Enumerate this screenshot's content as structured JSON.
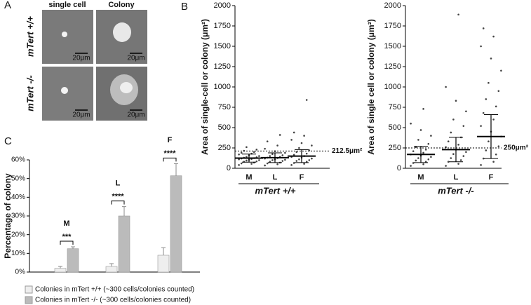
{
  "panel_labels": [
    "A",
    "B",
    "C"
  ],
  "panel_a": {
    "columns": [
      "single cell",
      "Colony"
    ],
    "rows": [
      "mTert +/+",
      "mTert -/-"
    ],
    "scale_bar": "20μm"
  },
  "chart_data": [
    {
      "type": "swarm",
      "categories": [
        "M",
        "L",
        "F"
      ],
      "xlabel": "mTert +/+",
      "ylabel": "Area of single-cell or colony (μm²)",
      "ylim": [
        0,
        2000
      ],
      "yticks": [
        0,
        250,
        500,
        750,
        1000,
        1250,
        1500,
        1750,
        2000
      ],
      "values": [
        [
          40,
          55,
          60,
          70,
          80,
          85,
          95,
          100,
          105,
          110,
          115,
          120,
          125,
          130,
          135,
          140,
          150,
          160,
          170,
          180,
          190,
          200,
          215,
          230,
          260
        ],
        [
          35,
          50,
          60,
          70,
          80,
          90,
          100,
          105,
          110,
          120,
          125,
          130,
          140,
          150,
          160,
          175,
          190,
          210,
          240,
          280,
          330,
          410
        ],
        [
          40,
          55,
          65,
          80,
          90,
          100,
          110,
          120,
          130,
          140,
          150,
          165,
          180,
          200,
          220,
          250,
          280,
          310,
          350,
          400,
          440,
          840
        ]
      ],
      "means": [
        125,
        130,
        150
      ],
      "sd": [
        50,
        60,
        80
      ],
      "refline": 212.5,
      "refline_label": "212.5μm²",
      "color": "#444444"
    },
    {
      "type": "swarm",
      "categories": [
        "M",
        "L",
        "F"
      ],
      "xlabel": "mTert -/-",
      "ylabel": "Area of single cell or colony (μm²)",
      "ylim": [
        0,
        2000
      ],
      "yticks": [
        0,
        250,
        500,
        750,
        1000,
        1250,
        1500,
        1750,
        2000
      ],
      "values": [
        [
          30,
          50,
          65,
          80,
          95,
          110,
          125,
          140,
          155,
          170,
          190,
          210,
          230,
          260,
          300,
          350,
          400,
          470,
          550,
          730
        ],
        [
          30,
          55,
          80,
          100,
          125,
          150,
          175,
          200,
          230,
          260,
          290,
          330,
          380,
          440,
          520,
          600,
          700,
          830,
          1000,
          1890
        ],
        [
          40,
          80,
          120,
          170,
          220,
          270,
          330,
          390,
          450,
          520,
          600,
          680,
          760,
          850,
          950,
          1050,
          1200,
          1350,
          1500,
          1620,
          1720
        ]
      ],
      "means": [
        170,
        230,
        390
      ],
      "sd": [
        100,
        150,
        270
      ],
      "refline": 250,
      "refline_label": "250μm²",
      "color": "#444444"
    },
    {
      "type": "bar",
      "categories": [
        "M",
        "L",
        "F"
      ],
      "ylabel": "Percentage of colony",
      "ylim": [
        0,
        60
      ],
      "yticks": [
        {
          "value": 0,
          "label": "0%"
        },
        {
          "value": 10,
          "label": "10%"
        },
        {
          "value": 20,
          "label": "20%"
        },
        {
          "value": 30,
          "label": "30%"
        },
        {
          "value": 40,
          "label": "40%"
        },
        {
          "value": 50,
          "label": "50%"
        },
        {
          "value": 60,
          "label": "60%"
        }
      ],
      "series": [
        {
          "name": "Colonies in mTert +/+ (~300 cells/colonies counted)",
          "color": "#eeeeee",
          "values": [
            2,
            3,
            9
          ],
          "errors": [
            1,
            1.5,
            4
          ]
        },
        {
          "name": "Colonies in mTert -/- (~300 cells/colonies counted)",
          "color": "#bbbbbb",
          "values": [
            12.5,
            30,
            51.5
          ],
          "errors": [
            1,
            5,
            6.5
          ]
        }
      ],
      "significance": [
        "***",
        "****",
        "****"
      ]
    }
  ]
}
